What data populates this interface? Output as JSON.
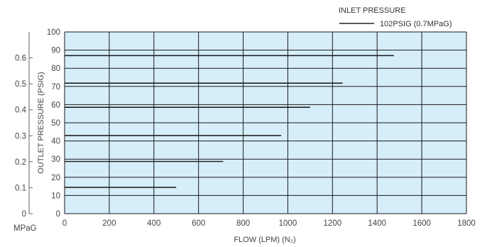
{
  "chart_data": {
    "type": "line",
    "title": "",
    "xlabel": "FLOW (LPM) (N₂)",
    "ylabel": "OUTLET PRESSURE (PSIG)",
    "secondary_y_unit": "MPaG",
    "xlim": [
      0,
      1800
    ],
    "ylim": [
      0,
      100
    ],
    "secondary_ylim": [
      0,
      0.7
    ],
    "x_ticks": [
      "0",
      "200",
      "400",
      "600",
      "800",
      "1000",
      "1200",
      "1400",
      "1600",
      "1800"
    ],
    "y_ticks": [
      "0",
      "10",
      "20",
      "30",
      "40",
      "50",
      "60",
      "70",
      "80",
      "90",
      "100"
    ],
    "secondary_y_ticks": [
      "0",
      "0.1",
      "0.2",
      "0.3",
      "0.4",
      "0.5",
      "0.6"
    ],
    "grid": true,
    "legend": {
      "title": "INLET PRESSURE",
      "placement": "top-right",
      "entries": [
        {
          "label": "102PSIG (0.7MPaG)",
          "color": "#222222"
        }
      ]
    },
    "series": [
      {
        "x": [
          0,
          500
        ],
        "y": [
          14.5,
          14.5
        ]
      },
      {
        "x": [
          0,
          710
        ],
        "y": [
          28.7,
          28.7
        ]
      },
      {
        "x": [
          0,
          970
        ],
        "y": [
          43.0,
          43.0
        ]
      },
      {
        "x": [
          0,
          1100
        ],
        "y": [
          58.5,
          58.5
        ]
      },
      {
        "x": [
          0,
          1245
        ],
        "y": [
          71.8,
          71.8
        ]
      },
      {
        "x": [
          0,
          1475
        ],
        "y": [
          87.0,
          87.0
        ]
      }
    ],
    "colors": {
      "plot_bg": "#d6eefa",
      "grid": "#1a1a1a",
      "line": "#222222",
      "text": "#444444"
    }
  }
}
